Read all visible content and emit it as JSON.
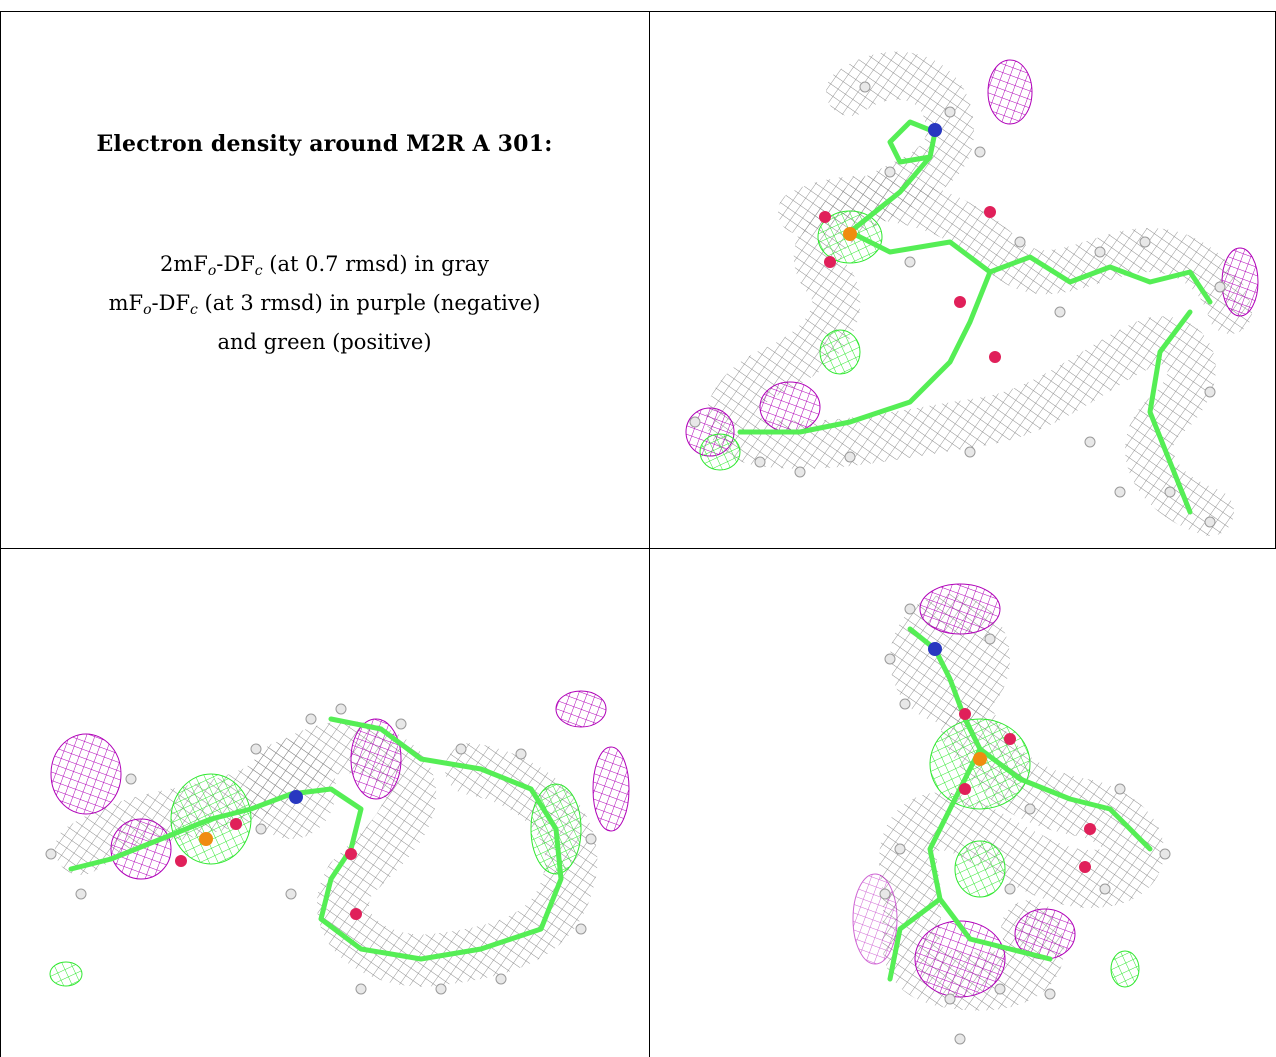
{
  "panel_text": {
    "heading": "Electron density around M2R A 301:",
    "line1": {
      "lead": "2mF",
      "o_sub": "o",
      "mid": "-DF",
      "c_sub": "c",
      "tail": " (at 0.7 rmsd) in gray"
    },
    "line2": {
      "lead": "mF",
      "o_sub": "o",
      "mid": "-DF",
      "c_sub": "c",
      "tail": " (at 3 rmsd) in purple (negative)"
    },
    "line3": "and green (positive)"
  },
  "colors": {
    "map_2fofc": "#8c8c8c",
    "map_negative": "#b000b8",
    "map_positive": "#2fe82f",
    "carbon": "#55ee55",
    "hydrogen": "#e8e8e8",
    "oxygen": "#e0205a",
    "phosphorus": "#f08c10",
    "nitrogen": "#2838c0",
    "grid_line": "#000000"
  },
  "panels": [
    {
      "name": "view-1",
      "icon": "ligand-density-view-icon"
    },
    {
      "name": "view-2",
      "icon": "ligand-density-view-icon"
    },
    {
      "name": "view-3",
      "icon": "ligand-density-view-icon"
    }
  ]
}
